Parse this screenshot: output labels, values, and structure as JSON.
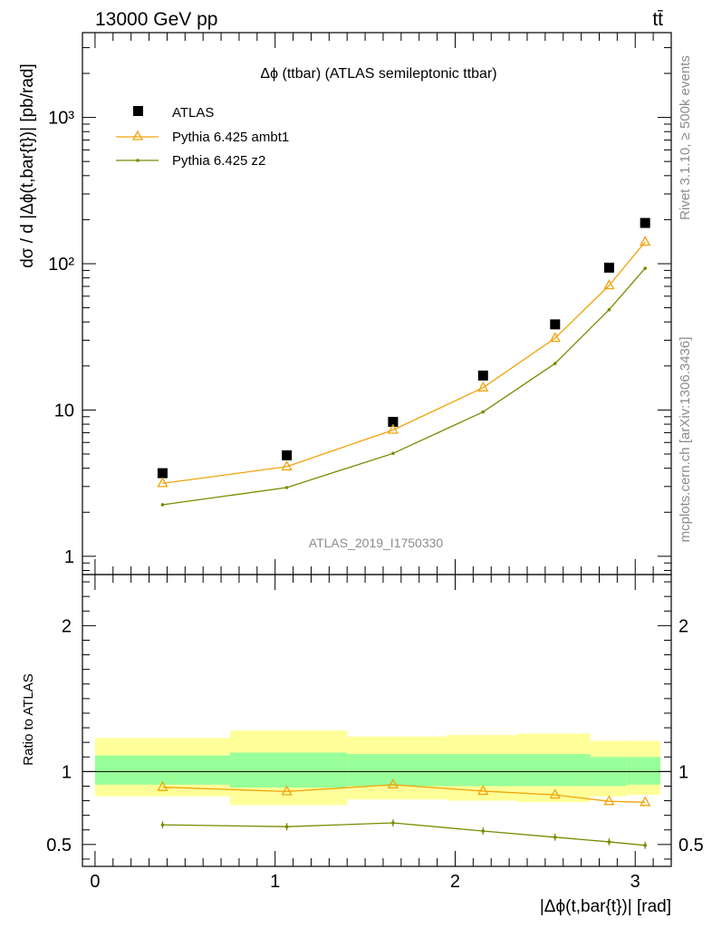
{
  "header": {
    "energy_label": "13000 GeV pp",
    "process_label": "tt̄"
  },
  "side": {
    "rivet_label": "Rivet 3.1.10, ≥ 500k events",
    "source_label": "mcplots.cern.ch [arXiv:1306.3436]"
  },
  "chart_data": [
    {
      "type": "scatter",
      "panel": "main",
      "title": "Δϕ (ttbar) (ATLAS semileptonic ttbar)",
      "ylabel": "dσ / d |Δϕ(t,bar{t})| [pb/rad]",
      "yscale": "log",
      "ylim": [
        0.75,
        3800
      ],
      "xlim": [
        -0.07,
        3.2
      ],
      "y_tick_labels": [
        "1",
        "10",
        "10²",
        "10³"
      ],
      "watermark": "ATLAS_2019_I1750330",
      "legend_position": "top-left",
      "series": [
        {
          "name": "ATLAS",
          "marker": "square",
          "color": "#000000",
          "x": [
            0.375,
            1.065,
            1.655,
            2.155,
            2.555,
            2.855,
            3.055
          ],
          "y": [
            3.7,
            4.9,
            8.3,
            17.2,
            38.5,
            94,
            190
          ]
        },
        {
          "name": "Pythia 6.425 ambt1",
          "marker": "triangle",
          "color": "#f0a30a",
          "x": [
            0.375,
            1.065,
            1.655,
            2.155,
            2.555,
            2.855,
            3.055
          ],
          "y": [
            3.15,
            4.1,
            7.3,
            14.2,
            31,
            71,
            141
          ]
        },
        {
          "name": "Pythia 6.425 z2",
          "marker": "dot",
          "color": "#7b8a00",
          "x": [
            0.375,
            1.065,
            1.655,
            2.155,
            2.555,
            2.855,
            3.055
          ],
          "y": [
            2.25,
            2.95,
            5.05,
            9.7,
            20.8,
            48.5,
            93
          ]
        }
      ]
    },
    {
      "type": "line",
      "panel": "ratio",
      "ylabel": "Ratio to ATLAS",
      "xlabel": "|Δϕ(t,bar{t})| [rad]",
      "ylim": [
        0.35,
        2.35
      ],
      "xlim": [
        -0.07,
        3.2
      ],
      "x_tick_labels": [
        "0",
        "1",
        "2",
        "3"
      ],
      "y_tick_labels": [
        "0.5",
        "1",
        "2"
      ],
      "bands": [
        {
          "x0": 0.0,
          "x1": 0.75,
          "yellow": [
            0.83,
            1.23
          ],
          "green": [
            0.91,
            1.11
          ]
        },
        {
          "x0": 0.75,
          "x1": 1.4,
          "yellow": [
            0.77,
            1.28
          ],
          "green": [
            0.89,
            1.13
          ]
        },
        {
          "x0": 1.4,
          "x1": 1.95,
          "yellow": [
            0.81,
            1.24
          ],
          "green": [
            0.9,
            1.12
          ]
        },
        {
          "x0": 1.95,
          "x1": 2.35,
          "yellow": [
            0.8,
            1.25
          ],
          "green": [
            0.9,
            1.12
          ]
        },
        {
          "x0": 2.35,
          "x1": 2.75,
          "yellow": [
            0.79,
            1.26
          ],
          "green": [
            0.9,
            1.12
          ]
        },
        {
          "x0": 2.75,
          "x1": 2.95,
          "yellow": [
            0.83,
            1.21
          ],
          "green": [
            0.9,
            1.1
          ]
        },
        {
          "x0": 2.95,
          "x1": 3.14,
          "yellow": [
            0.84,
            1.21
          ],
          "green": [
            0.91,
            1.1
          ]
        }
      ],
      "series": [
        {
          "name": "Pythia 6.425 ambt1",
          "marker": "triangle",
          "color": "#f0a30a",
          "x": [
            0.375,
            1.065,
            1.655,
            2.155,
            2.555,
            2.855,
            3.055
          ],
          "y": [
            0.893,
            0.863,
            0.91,
            0.866,
            0.84,
            0.796,
            0.789
          ]
        },
        {
          "name": "Pythia 6.425 z2",
          "marker": "dot",
          "color": "#7b8a00",
          "x": [
            0.375,
            1.065,
            1.655,
            2.155,
            2.555,
            2.855,
            3.055
          ],
          "y": [
            0.635,
            0.622,
            0.648,
            0.592,
            0.55,
            0.518,
            0.494
          ]
        }
      ]
    }
  ],
  "colors": {
    "band_yellow": "#ffff99",
    "band_green": "#99ff99",
    "ambt1": "#f0a30a",
    "z2": "#7b8a00"
  }
}
